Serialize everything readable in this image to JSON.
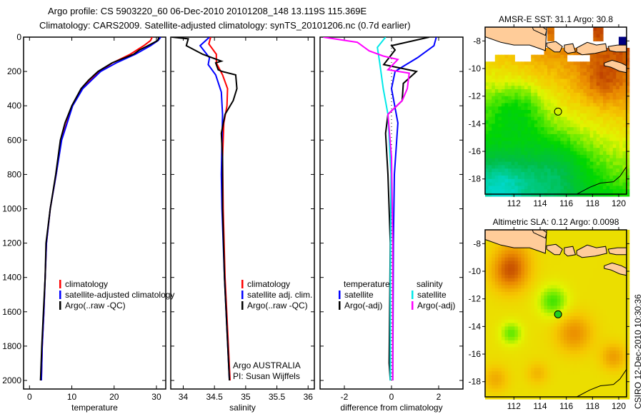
{
  "header": {
    "title_line1": "Argo profile: CS 5903220_60 06-Dec-2010 20101208_148 13.119S 115.369E",
    "title_line2": "Climatology: CARS2009. Satellite-adjusted climatology: synTS_20101206.nc (0.7d earlier)"
  },
  "credit": "CSIRO 12-Dec-2010 10:30:36",
  "annotation": {
    "line1": "Argo AUSTRALIA",
    "line2": "PI: Susan Wijffels"
  },
  "legends": {
    "temperature": [
      {
        "label": "climatology",
        "color": "#ff0000"
      },
      {
        "label": "satellite-adjusted climatology",
        "color": "#0000ff"
      },
      {
        "label": "Argo(..raw -QC)",
        "color": "#000000"
      }
    ],
    "salinity": [
      {
        "label": "climatology",
        "color": "#ff0000"
      },
      {
        "label": "satellite adj. clim.",
        "color": "#0000ff"
      },
      {
        "label": "Argo(..raw -QC)",
        "color": "#000000"
      }
    ],
    "difference": {
      "temp_header": "temperature",
      "sal_header": "salinity",
      "temp": [
        {
          "label": "satellite",
          "color": "#0000ff"
        },
        {
          "label": "Argo(-adj)",
          "color": "#000000"
        }
      ],
      "sal": [
        {
          "label": "satellite",
          "color": "#00e8e8"
        },
        {
          "label": "Argo(-adj)",
          "color": "#ff00ff"
        }
      ]
    }
  },
  "chart_data": [
    {
      "type": "line",
      "id": "temperature",
      "xlabel": "temperature",
      "ylabel": "",
      "xlim": [
        -1.4,
        32.2
      ],
      "ylim": [
        2050,
        0
      ],
      "xticks": [
        "0",
        "10",
        "20",
        "30"
      ],
      "xtick_values": [
        0,
        10,
        20,
        30
      ],
      "yticks": [
        "0",
        "200",
        "400",
        "600",
        "800",
        "1000",
        "1200",
        "1400",
        "1600",
        "1800",
        "2000"
      ],
      "ytick_values": [
        0,
        200,
        400,
        600,
        800,
        1000,
        1200,
        1400,
        1600,
        1800,
        2000
      ],
      "series": [
        {
          "name": "climatology",
          "color": "#ff0000",
          "depth": [
            0,
            20,
            50,
            100,
            150,
            200,
            300,
            400,
            600,
            800,
            1000,
            1200,
            1400,
            1600,
            1800,
            2000
          ],
          "values": [
            29,
            28.6,
            27,
            23.8,
            19.6,
            16.6,
            12.4,
            10.1,
            7.5,
            6.3,
            4.9,
            4.0,
            3.7,
            3.4,
            3.0,
            2.8
          ]
        },
        {
          "name": "satellite-adjusted climatology",
          "color": "#0000ff",
          "depth": [
            0,
            20,
            50,
            100,
            150,
            200,
            300,
            400,
            600,
            800,
            1000,
            1200,
            1400,
            1600,
            1800,
            2000
          ],
          "values": [
            31,
            30.4,
            28.6,
            25,
            20.5,
            16.8,
            12.6,
            10.2,
            7.6,
            6.3,
            4.9,
            4.0,
            3.7,
            3.4,
            3.0,
            2.8
          ]
        },
        {
          "name": "Argo(..raw -QC)",
          "color": "#000000",
          "depth": [
            0,
            20,
            50,
            75,
            100,
            150,
            200,
            250,
            300,
            400,
            500,
            600,
            800,
            1000,
            1200,
            1400,
            1600,
            1800,
            2000
          ],
          "values": [
            30.6,
            30.3,
            28,
            26,
            24.6,
            19.5,
            16.2,
            14,
            12.2,
            10,
            8.4,
            7.3,
            6.2,
            4.9,
            3.9,
            3.7,
            3.3,
            2.9,
            2.6
          ]
        }
      ]
    },
    {
      "type": "line",
      "id": "salinity",
      "xlabel": "salinity",
      "ylabel": "",
      "xlim": [
        33.8,
        36.1
      ],
      "ylim": [
        2050,
        0
      ],
      "xticks": [
        "34",
        "34.5",
        "35",
        "35.5",
        "36"
      ],
      "xtick_values": [
        34,
        34.5,
        35,
        35.5,
        36
      ],
      "series": [
        {
          "name": "climatology",
          "color": "#ff0000",
          "depth": [
            0,
            40,
            100,
            150,
            220,
            300,
            400,
            500,
            700,
            1000,
            1400,
            2000
          ],
          "values": [
            34.44,
            34.41,
            34.53,
            34.53,
            34.63,
            34.71,
            34.7,
            34.65,
            34.63,
            34.64,
            34.67,
            34.75
          ]
        },
        {
          "name": "satellite adj. clim.",
          "color": "#0000ff",
          "depth": [
            0,
            50,
            120,
            160,
            220,
            320,
            450,
            800,
            1000,
            1400,
            2000
          ],
          "values": [
            34.42,
            34.27,
            34.42,
            34.4,
            34.52,
            34.61,
            34.63,
            34.61,
            34.62,
            34.66,
            34.74
          ]
        },
        {
          "name": "Argo(..raw -QC)",
          "color": "#000000",
          "depth": [
            0,
            10,
            50,
            100,
            140,
            150,
            190,
            200,
            220,
            300,
            370,
            450,
            560,
            700,
            1000,
            1400,
            2000
          ],
          "values": [
            33.82,
            34.08,
            34.05,
            34.31,
            34.61,
            34.52,
            34.56,
            34.62,
            34.84,
            34.86,
            34.8,
            34.67,
            34.61,
            34.63,
            34.63,
            34.66,
            34.74
          ]
        }
      ]
    },
    {
      "type": "line",
      "id": "difference",
      "xlabel": "difference from climatology",
      "ylabel": "",
      "xlim": [
        -3.03,
        3.03
      ],
      "ylim": [
        2050,
        0
      ],
      "xticks": [
        "-2",
        "0",
        "2"
      ],
      "xtick_values": [
        -2,
        0,
        2
      ],
      "series": [
        {
          "name": "temperature satellite",
          "color": "#0000ff",
          "depth": [
            0,
            50,
            120,
            170,
            200,
            300,
            500,
            800,
            1200,
            2000
          ],
          "values": [
            1.9,
            1.8,
            1.1,
            0.5,
            0.15,
            0,
            0.27,
            0.12,
            0.08,
            0.05
          ]
        },
        {
          "name": "temperature Argo(-adj)",
          "color": "#000000",
          "depth": [
            0,
            50,
            75,
            160,
            200,
            270,
            370,
            450,
            560,
            800,
            1200,
            1900,
            2000
          ],
          "values": [
            1.6,
            0,
            0.15,
            -0.33,
            1.06,
            0.5,
            0.45,
            -0.15,
            -0.25,
            -0.15,
            -0.05,
            -0.1,
            -0.05
          ]
        },
        {
          "name": "salinity satellite",
          "color": "#00e8e8",
          "depth": [
            0,
            60,
            150,
            300,
            450,
            800,
            1400,
            2000
          ],
          "values": [
            -0.25,
            -0.6,
            -0.5,
            -0.35,
            -0.15,
            -0.02,
            -0.05,
            -0.05
          ]
        },
        {
          "name": "salinity Argo(-adj)",
          "color": "#ff00ff",
          "depth": [
            0,
            30,
            80,
            110,
            130,
            190,
            210,
            300,
            370,
            450,
            700,
            1200,
            2000
          ],
          "values": [
            -2.9,
            -1.45,
            -0.95,
            -0.35,
            0.27,
            -0.15,
            0.75,
            0.67,
            0.45,
            -0.15,
            0,
            0.05,
            0.05
          ]
        }
      ]
    },
    {
      "type": "heatmap",
      "id": "sst-map",
      "title": "AMSR-E SST: 31.1 Argo: 30.8",
      "xlim": [
        109.8,
        120.6
      ],
      "ylim": [
        -19.1,
        -7
      ],
      "xticks": [
        "112",
        "114",
        "116",
        "118",
        "120"
      ],
      "xtick_values": [
        112,
        114,
        116,
        118,
        120
      ],
      "yticks": [
        "-8",
        "-10",
        "-12",
        "-14",
        "-16",
        "-18"
      ],
      "ytick_values": [
        -8,
        -10,
        -12,
        -14,
        -16,
        -18
      ],
      "marker": {
        "lon": 115.369,
        "lat": -13.119,
        "filled": false
      }
    },
    {
      "type": "heatmap",
      "id": "sla-map",
      "title": "Altimetric SLA: 0.12 Argo: 0.0098",
      "xlim": [
        109.8,
        120.6
      ],
      "ylim": [
        -19.1,
        -7
      ],
      "xticks": [
        "112",
        "114",
        "116",
        "118",
        "120"
      ],
      "xtick_values": [
        112,
        114,
        116,
        118,
        120
      ],
      "yticks": [
        "-8",
        "-10",
        "-12",
        "-14",
        "-16",
        "-18"
      ],
      "ytick_values": [
        -8,
        -10,
        -12,
        -14,
        -16,
        -18
      ],
      "marker": {
        "lon": 115.369,
        "lat": -13.119,
        "filled": true,
        "color": "#20d020"
      }
    }
  ]
}
